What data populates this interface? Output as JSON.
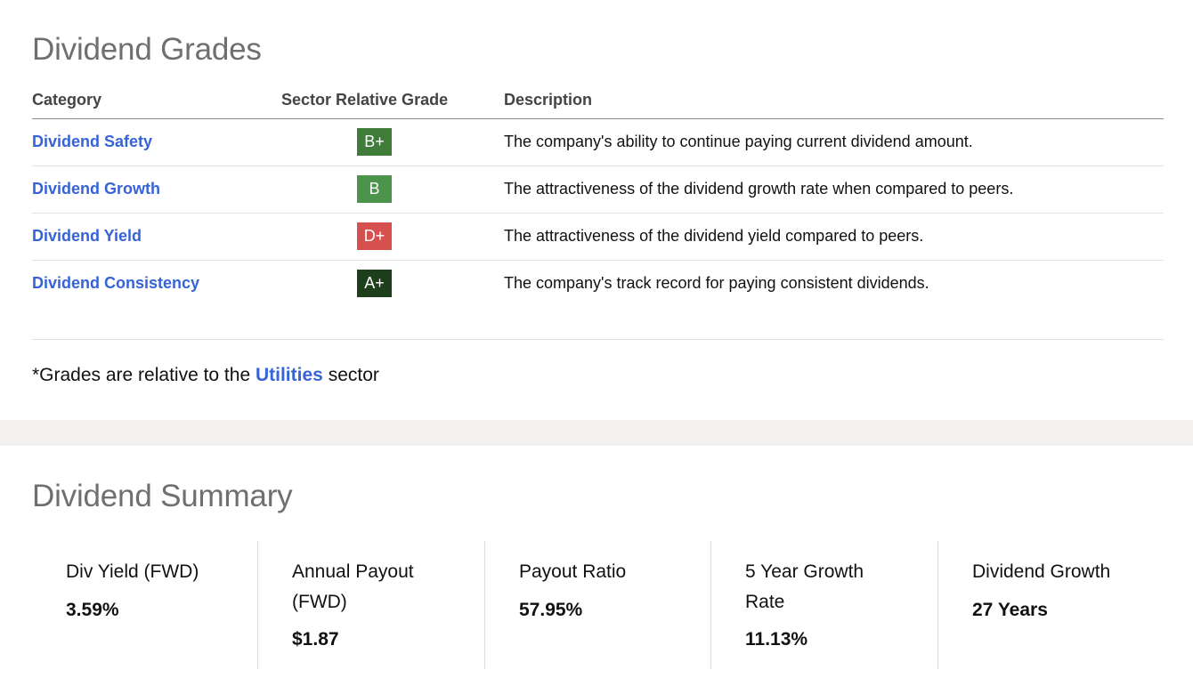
{
  "grades": {
    "title": "Dividend Grades",
    "columns": {
      "category": "Category",
      "grade": "Sector Relative Grade",
      "description": "Description"
    },
    "rows": [
      {
        "category": "Dividend Safety",
        "grade": "B+",
        "grade_color": "#3f7c3a",
        "description": "The company's ability to continue paying current dividend amount."
      },
      {
        "category": "Dividend Growth",
        "grade": "B",
        "grade_color": "#4c934b",
        "description": "The attractiveness of the dividend growth rate when compared to peers."
      },
      {
        "category": "Dividend Yield",
        "grade": "D+",
        "grade_color": "#d65050",
        "description": "The attractiveness of the dividend yield compared to peers."
      },
      {
        "category": "Dividend Consistency",
        "grade": "A+",
        "grade_color": "#1e3f1c",
        "description": "The company's track record for paying consistent dividends."
      }
    ],
    "note_prefix": "*Grades are relative to the",
    "note_link": "Utilities",
    "note_suffix": "sector"
  },
  "summary": {
    "title": "Dividend Summary",
    "cards": [
      {
        "label": "Div Yield (FWD)",
        "value": "3.59%"
      },
      {
        "label": "Annual Payout (FWD)",
        "value": "$1.87"
      },
      {
        "label": "Payout Ratio",
        "value": "57.95%"
      },
      {
        "label": "5 Year Growth Rate",
        "value": "11.13%"
      },
      {
        "label": "Dividend Growth",
        "value": "27 Years"
      }
    ]
  },
  "colors": {
    "link": "#3663d6",
    "title": "#6f6f6f",
    "band": "#f2f1ef"
  }
}
